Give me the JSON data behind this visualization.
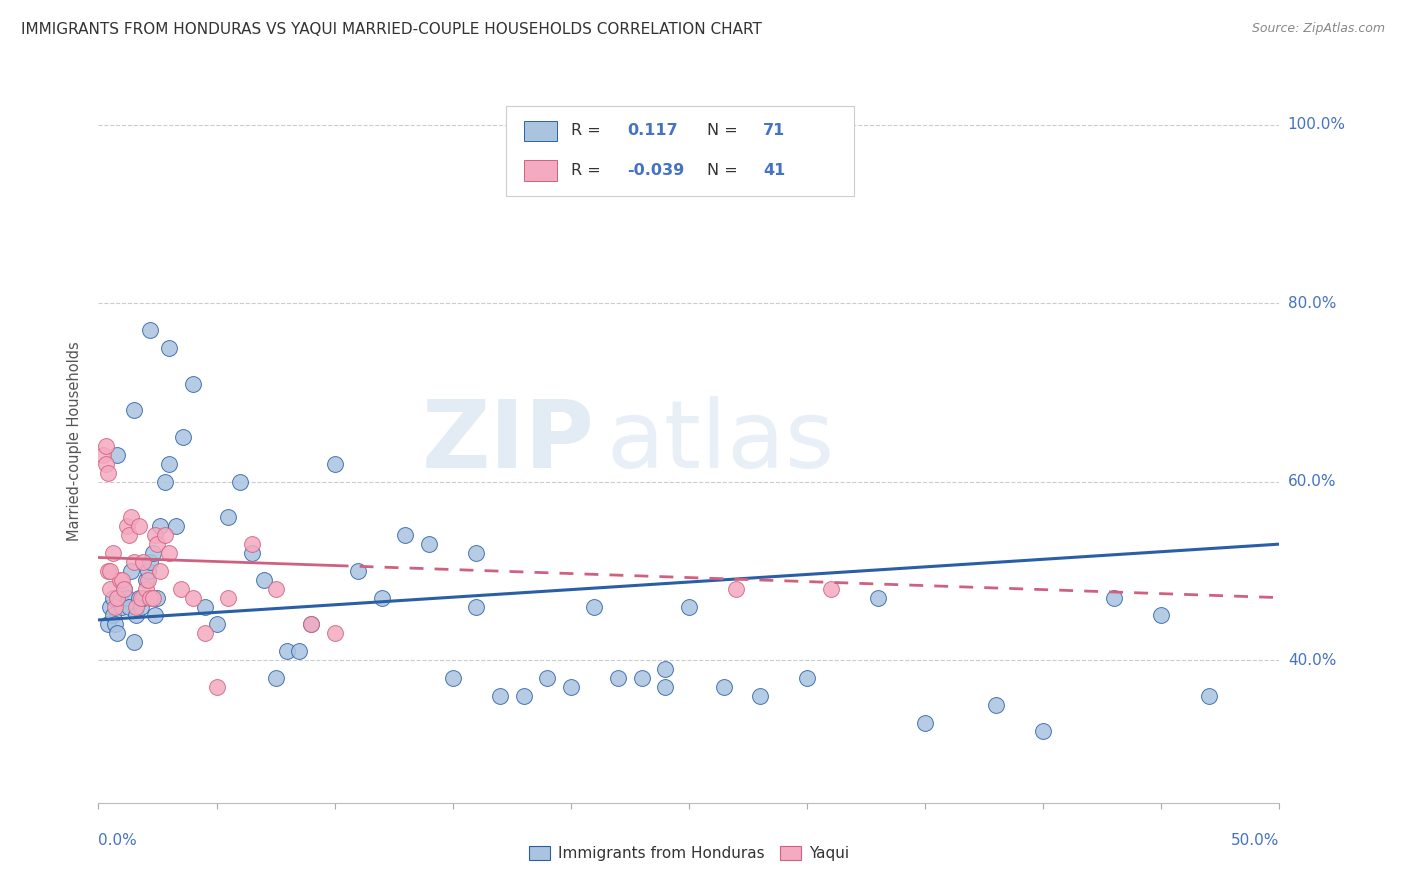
{
  "title": "IMMIGRANTS FROM HONDURAS VS YAQUI MARRIED-COUPLE HOUSEHOLDS CORRELATION CHART",
  "source": "Source: ZipAtlas.com",
  "ylabel": "Married-couple Households",
  "blue_R": "0.117",
  "blue_N": "71",
  "pink_R": "-0.039",
  "pink_N": "41",
  "blue_color": "#aac4e0",
  "pink_color": "#f4aac0",
  "blue_line_color": "#2a5fa8",
  "pink_line_color": "#d06080",
  "xlim": [
    0.0,
    50.0
  ],
  "ylim": [
    24.0,
    105.0
  ],
  "ytick_vals": [
    40,
    60,
    80,
    100
  ],
  "ytick_labels": [
    "40.0%",
    "60.0%",
    "80.0%",
    "100.0%"
  ],
  "blue_points_x": [
    0.4,
    0.5,
    0.6,
    0.7,
    0.8,
    0.9,
    1.0,
    1.1,
    1.2,
    1.3,
    1.4,
    1.5,
    1.6,
    1.7,
    1.8,
    1.9,
    2.0,
    2.1,
    2.2,
    2.3,
    2.4,
    2.5,
    2.6,
    2.8,
    3.0,
    3.3,
    3.6,
    4.0,
    4.5,
    5.0,
    5.5,
    6.0,
    6.5,
    7.0,
    7.5,
    8.0,
    9.0,
    10.0,
    11.0,
    12.0,
    13.0,
    14.0,
    15.0,
    16.0,
    17.0,
    18.0,
    19.0,
    20.0,
    21.0,
    22.0,
    23.0,
    24.0,
    25.0,
    26.5,
    28.0,
    30.0,
    33.0,
    35.0,
    38.0,
    40.0,
    43.0,
    45.0,
    47.0,
    24.0,
    16.0,
    8.5,
    3.0,
    2.2,
    1.5,
    0.8,
    0.6
  ],
  "blue_points_y": [
    44,
    46,
    45,
    44,
    43,
    47,
    46,
    48,
    47,
    46,
    50,
    42,
    45,
    47,
    46,
    47,
    49,
    50,
    51,
    52,
    45,
    47,
    55,
    60,
    62,
    55,
    65,
    71,
    46,
    44,
    56,
    60,
    52,
    49,
    38,
    41,
    44,
    62,
    50,
    47,
    54,
    53,
    38,
    46,
    36,
    36,
    38,
    37,
    46,
    38,
    38,
    39,
    46,
    37,
    36,
    38,
    47,
    33,
    35,
    32,
    47,
    45,
    36,
    37,
    52,
    41,
    75,
    77,
    68,
    63,
    47
  ],
  "pink_points_x": [
    0.2,
    0.3,
    0.4,
    0.5,
    0.6,
    0.7,
    0.8,
    0.9,
    1.0,
    1.1,
    1.2,
    1.3,
    1.4,
    1.5,
    1.6,
    1.7,
    1.8,
    1.9,
    2.0,
    2.1,
    2.2,
    2.3,
    2.4,
    2.5,
    2.6,
    2.8,
    3.0,
    3.5,
    4.0,
    4.5,
    5.0,
    5.5,
    6.5,
    7.5,
    9.0,
    10.0,
    0.3,
    0.4,
    0.5,
    27.0,
    31.0
  ],
  "pink_points_y": [
    63,
    64,
    50,
    48,
    52,
    46,
    47,
    49,
    49,
    48,
    55,
    54,
    56,
    51,
    46,
    55,
    47,
    51,
    48,
    49,
    47,
    47,
    54,
    53,
    50,
    54,
    52,
    48,
    47,
    43,
    37,
    47,
    53,
    48,
    44,
    43,
    62,
    61,
    50,
    48,
    48
  ],
  "blue_trend_x": [
    0,
    50
  ],
  "blue_trend_y_at0": 44.5,
  "blue_trend_y_at50": 53.0,
  "pink_trend_x": [
    0,
    50
  ],
  "pink_trend_y_at0": 51.5,
  "pink_trend_y_at50": 47.0
}
